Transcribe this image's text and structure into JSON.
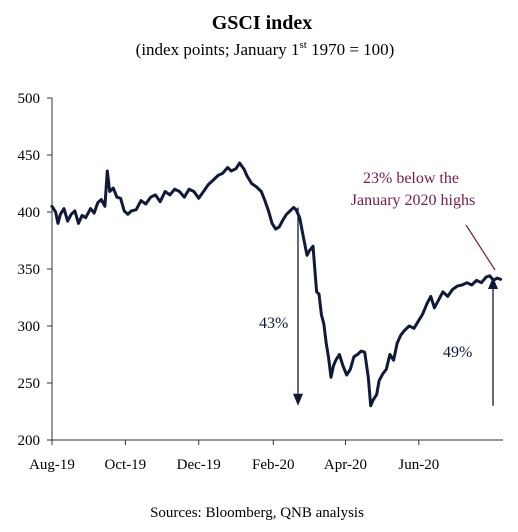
{
  "colors": {
    "line": "#0f1a3a",
    "axis": "#333333",
    "annotation_accent": "#7a1848",
    "text": "#000000"
  },
  "chart_data": {
    "type": "line",
    "title": "GSCI index",
    "subtitle_pre": "(index points; January 1",
    "subtitle_sup": "st",
    "subtitle_post": " 1970 = 100)",
    "xlabel": "",
    "ylabel": "",
    "ylim": [
      200,
      500
    ],
    "yticks": [
      200,
      250,
      300,
      350,
      400,
      450,
      500
    ],
    "xlim": [
      "2019-08-01",
      "2020-08-10"
    ],
    "xticks": [
      {
        "date": "2019-08-01",
        "label": "Aug-19"
      },
      {
        "date": "2019-10-01",
        "label": "Oct-19"
      },
      {
        "date": "2019-12-01",
        "label": "Dec-19"
      },
      {
        "date": "2020-02-01",
        "label": "Feb-20"
      },
      {
        "date": "2020-04-01",
        "label": "Apr-20"
      },
      {
        "date": "2020-06-01",
        "label": "Jun-20"
      }
    ],
    "grid": false,
    "series": [
      {
        "points": [
          [
            "2019-08-01",
            405
          ],
          [
            "2019-08-04",
            400
          ],
          [
            "2019-08-06",
            390
          ],
          [
            "2019-08-08",
            398
          ],
          [
            "2019-08-11",
            403
          ],
          [
            "2019-08-14",
            392
          ],
          [
            "2019-08-17",
            398
          ],
          [
            "2019-08-20",
            401
          ],
          [
            "2019-08-23",
            390
          ],
          [
            "2019-08-26",
            397
          ],
          [
            "2019-08-29",
            395
          ],
          [
            "2019-09-02",
            403
          ],
          [
            "2019-09-05",
            399
          ],
          [
            "2019-09-08",
            408
          ],
          [
            "2019-09-11",
            411
          ],
          [
            "2019-09-14",
            405
          ],
          [
            "2019-09-16",
            436
          ],
          [
            "2019-09-18",
            418
          ],
          [
            "2019-09-21",
            421
          ],
          [
            "2019-09-24",
            413
          ],
          [
            "2019-09-27",
            412
          ],
          [
            "2019-09-30",
            401
          ],
          [
            "2019-10-03",
            398
          ],
          [
            "2019-10-06",
            401
          ],
          [
            "2019-10-10",
            402
          ],
          [
            "2019-10-14",
            410
          ],
          [
            "2019-10-18",
            407
          ],
          [
            "2019-10-22",
            413
          ],
          [
            "2019-10-26",
            415
          ],
          [
            "2019-10-30",
            409
          ],
          [
            "2019-11-03",
            418
          ],
          [
            "2019-11-07",
            415
          ],
          [
            "2019-11-11",
            420
          ],
          [
            "2019-11-15",
            418
          ],
          [
            "2019-11-19",
            413
          ],
          [
            "2019-11-23",
            420
          ],
          [
            "2019-11-27",
            418
          ],
          [
            "2019-12-01",
            412
          ],
          [
            "2019-12-05",
            418
          ],
          [
            "2019-12-09",
            424
          ],
          [
            "2019-12-13",
            428
          ],
          [
            "2019-12-17",
            432
          ],
          [
            "2019-12-21",
            434
          ],
          [
            "2019-12-25",
            439
          ],
          [
            "2019-12-28",
            436
          ],
          [
            "2020-01-01",
            438
          ],
          [
            "2020-01-04",
            443
          ],
          [
            "2020-01-06",
            440
          ],
          [
            "2020-01-08",
            437
          ],
          [
            "2020-01-10",
            432
          ],
          [
            "2020-01-14",
            425
          ],
          [
            "2020-01-18",
            422
          ],
          [
            "2020-01-22",
            418
          ],
          [
            "2020-01-25",
            410
          ],
          [
            "2020-01-28",
            401
          ],
          [
            "2020-01-31",
            390
          ],
          [
            "2020-02-03",
            385
          ],
          [
            "2020-02-06",
            387
          ],
          [
            "2020-02-09",
            393
          ],
          [
            "2020-02-12",
            398
          ],
          [
            "2020-02-15",
            401
          ],
          [
            "2020-02-18",
            404
          ],
          [
            "2020-02-20",
            402
          ],
          [
            "2020-02-23",
            395
          ],
          [
            "2020-02-26",
            378
          ],
          [
            "2020-02-29",
            362
          ],
          [
            "2020-03-02",
            366
          ],
          [
            "2020-03-05",
            370
          ],
          [
            "2020-03-08",
            330
          ],
          [
            "2020-03-10",
            328
          ],
          [
            "2020-03-12",
            310
          ],
          [
            "2020-03-14",
            302
          ],
          [
            "2020-03-16",
            285
          ],
          [
            "2020-03-18",
            272
          ],
          [
            "2020-03-20",
            255
          ],
          [
            "2020-03-22",
            265
          ],
          [
            "2020-03-24",
            270
          ],
          [
            "2020-03-27",
            275
          ],
          [
            "2020-03-30",
            265
          ],
          [
            "2020-04-02",
            257
          ],
          [
            "2020-04-05",
            262
          ],
          [
            "2020-04-08",
            273
          ],
          [
            "2020-04-11",
            275
          ],
          [
            "2020-04-14",
            278
          ],
          [
            "2020-04-17",
            277
          ],
          [
            "2020-04-20",
            255
          ],
          [
            "2020-04-22",
            230
          ],
          [
            "2020-04-24",
            235
          ],
          [
            "2020-04-27",
            240
          ],
          [
            "2020-04-29",
            252
          ],
          [
            "2020-05-02",
            258
          ],
          [
            "2020-05-05",
            262
          ],
          [
            "2020-05-08",
            275
          ],
          [
            "2020-05-11",
            270
          ],
          [
            "2020-05-14",
            285
          ],
          [
            "2020-05-17",
            292
          ],
          [
            "2020-05-20",
            296
          ],
          [
            "2020-05-24",
            300
          ],
          [
            "2020-05-28",
            298
          ],
          [
            "2020-06-01",
            305
          ],
          [
            "2020-06-04",
            310
          ],
          [
            "2020-06-08",
            320
          ],
          [
            "2020-06-11",
            326
          ],
          [
            "2020-06-14",
            316
          ],
          [
            "2020-06-17",
            322
          ],
          [
            "2020-06-21",
            330
          ],
          [
            "2020-06-25",
            326
          ],
          [
            "2020-06-29",
            332
          ],
          [
            "2020-07-03",
            335
          ],
          [
            "2020-07-07",
            336
          ],
          [
            "2020-07-11",
            338
          ],
          [
            "2020-07-15",
            336
          ],
          [
            "2020-07-19",
            340
          ],
          [
            "2020-07-23",
            338
          ],
          [
            "2020-07-27",
            343
          ],
          [
            "2020-07-30",
            344
          ],
          [
            "2020-08-02",
            340
          ],
          [
            "2020-08-05",
            342
          ],
          [
            "2020-08-08",
            341
          ]
        ]
      }
    ],
    "annotations": [
      {
        "id": "below-highs",
        "line1": "23% below the",
        "line2": "January 2020 highs"
      },
      {
        "id": "drop",
        "text": "43%",
        "from": 404,
        "to": 230
      },
      {
        "id": "rise",
        "text": "49%",
        "from": 230,
        "to": 343
      }
    ],
    "source": "Sources: Bloomberg, QNB analysis"
  }
}
